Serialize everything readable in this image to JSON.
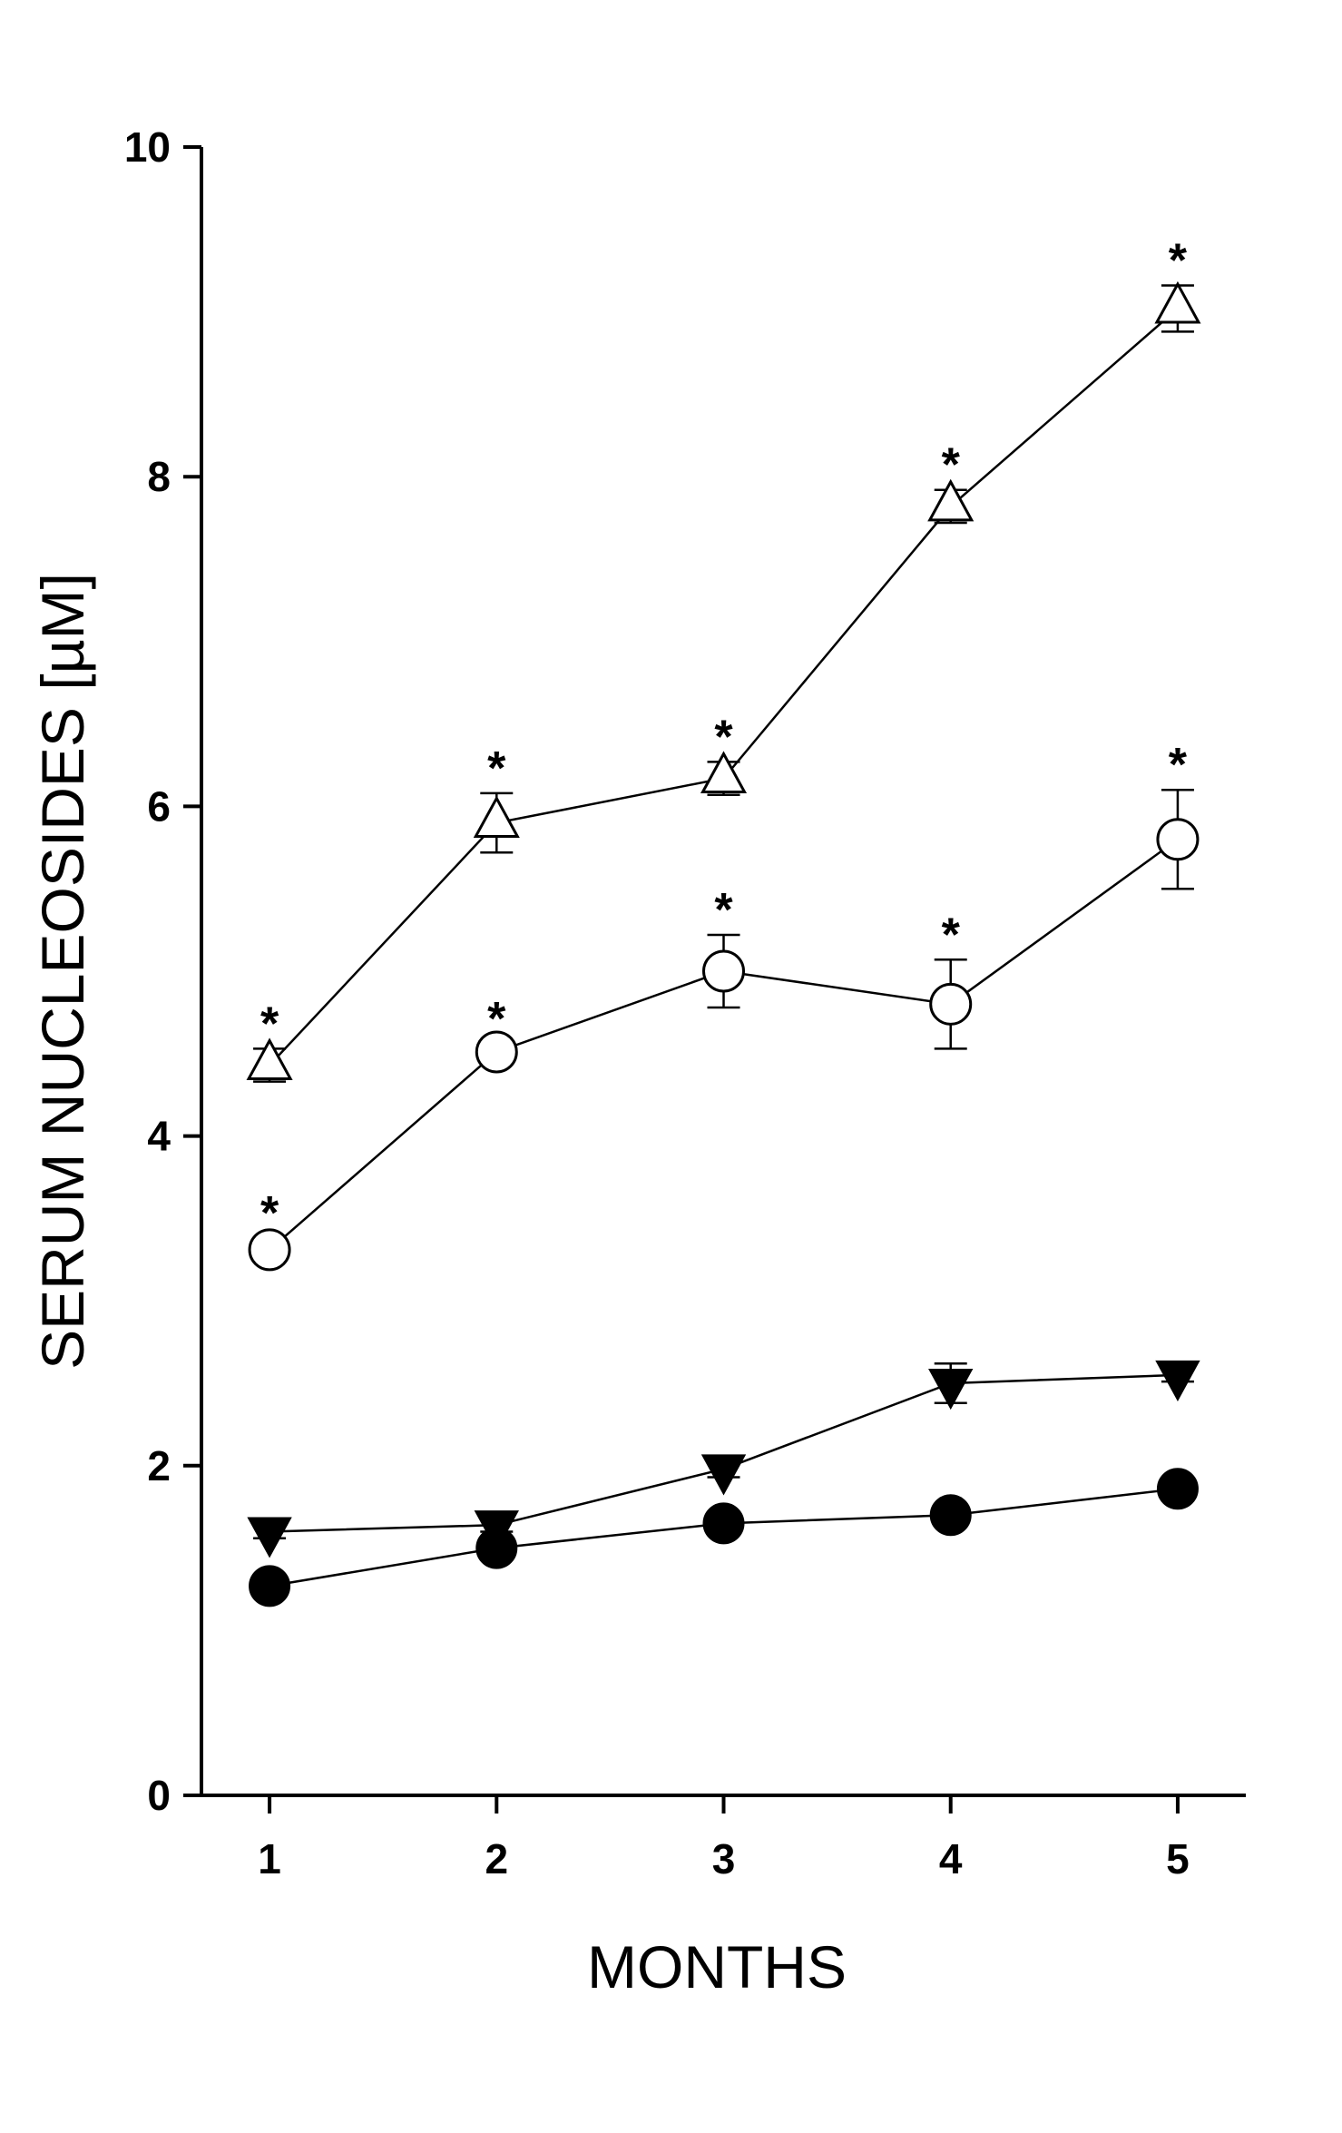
{
  "chart_data": {
    "type": "line",
    "xlabel": "MONTHS",
    "ylabel": "SERUM NUCLEOSIDES [µM]",
    "xlim": [
      0.7,
      5.3
    ],
    "ylim": [
      0,
      10
    ],
    "x_ticks": [
      "1",
      "2",
      "3",
      "4",
      "5"
    ],
    "y_ticks": [
      "0",
      "2",
      "4",
      "6",
      "8",
      "10"
    ],
    "grid": false,
    "significance_marker": "*",
    "x": [
      1,
      2,
      3,
      4,
      5
    ],
    "series": [
      {
        "marker": "triangle-up-open",
        "values": [
          4.43,
          5.9,
          6.17,
          7.82,
          9.02
        ],
        "errors": [
          0.1,
          0.18,
          0.1,
          0.1,
          0.14
        ],
        "significant": [
          true,
          true,
          true,
          true,
          true
        ],
        "color": "#000000"
      },
      {
        "marker": "circle-open",
        "values": [
          3.31,
          4.51,
          5.0,
          4.8,
          5.8
        ],
        "errors": [
          0.07,
          0.05,
          0.22,
          0.27,
          0.3
        ],
        "significant": [
          true,
          true,
          true,
          true,
          true
        ],
        "color": "#000000"
      },
      {
        "marker": "triangle-down-filled",
        "values": [
          1.6,
          1.64,
          1.98,
          2.5,
          2.55
        ],
        "errors": [
          0.04,
          0.04,
          0.05,
          0.12,
          0.04
        ],
        "significant": [
          false,
          false,
          false,
          false,
          false
        ],
        "color": "#000000"
      },
      {
        "marker": "circle-filled",
        "values": [
          1.27,
          1.5,
          1.65,
          1.7,
          1.86
        ],
        "errors": [
          0.03,
          0.03,
          0.03,
          0.03,
          0.04
        ],
        "significant": [
          false,
          false,
          false,
          false,
          false
        ],
        "color": "#000000"
      }
    ]
  }
}
